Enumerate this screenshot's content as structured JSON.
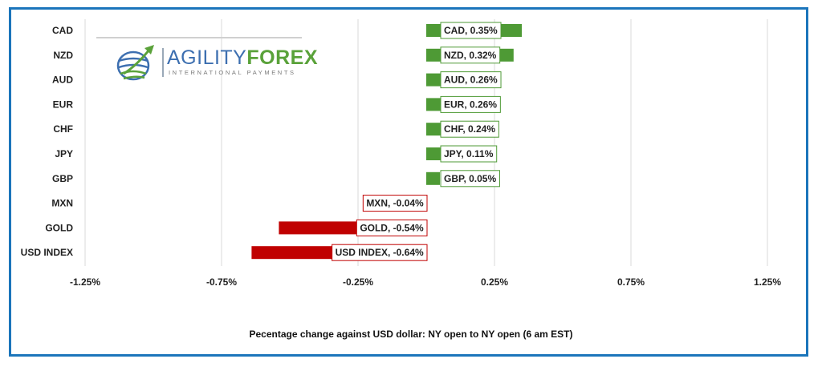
{
  "chart_data": {
    "type": "bar",
    "orientation": "horizontal",
    "categories": [
      "CAD",
      "NZD",
      "AUD",
      "EUR",
      "CHF",
      "JPY",
      "GBP",
      "MXN",
      "GOLD",
      "USD INDEX"
    ],
    "values": [
      0.35,
      0.32,
      0.26,
      0.26,
      0.24,
      0.11,
      0.05,
      -0.04,
      -0.54,
      -0.64
    ],
    "data_labels": [
      "CAD, 0.35%",
      "NZD, 0.32%",
      "AUD, 0.26%",
      "EUR, 0.26%",
      "CHF, 0.24%",
      "JPY, 0.11%",
      "GBP, 0.05%",
      "MXN, -0.04%",
      "GOLD, -0.54%",
      "USD INDEX, -0.64%"
    ],
    "x_ticks": [
      -1.25,
      -0.75,
      -0.25,
      0.25,
      0.75,
      1.25
    ],
    "x_tick_labels": [
      "-1.25%",
      "-0.75%",
      "-0.25%",
      "0.25%",
      "0.75%",
      "1.25%"
    ],
    "xlim": [
      -1.25,
      1.25
    ],
    "grid": true,
    "xlabel": "Pecentage change against USD dollar:  NY open to NY open  (6 am EST)",
    "colors": {
      "positive": "#4e9a35",
      "negative": "#c00000",
      "gridline": "#d9d9d9",
      "frame": "#1b75bb"
    }
  },
  "logo": {
    "word_part1": "AGILITY",
    "word_part2": "FOREX",
    "tagline": "INTERNATIONAL PAYMENTS"
  }
}
